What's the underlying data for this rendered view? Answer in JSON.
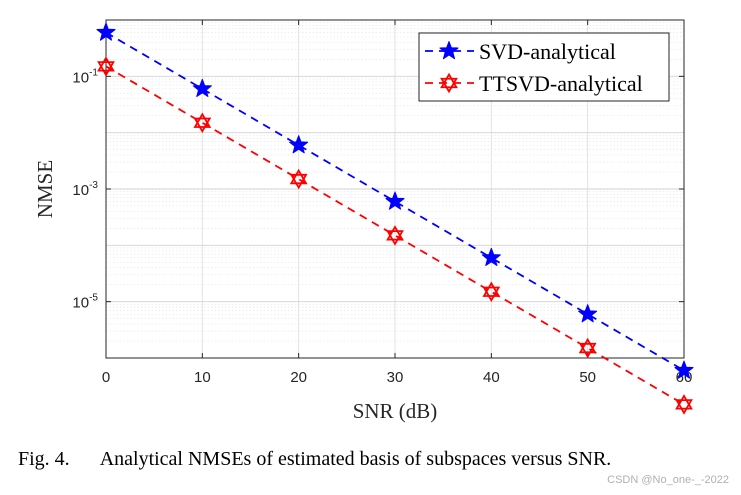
{
  "chart_data": {
    "type": "line",
    "xlabel": "SNR (dB)",
    "ylabel": "NMSE",
    "y_scale": "log",
    "xlim": [
      0,
      60
    ],
    "ylim": [
      1e-06,
      1.0
    ],
    "x_ticks": [
      0,
      10,
      20,
      30,
      40,
      50,
      60
    ],
    "y_ticks": [
      {
        "base": "10",
        "exp": "-1",
        "value": 0.1
      },
      {
        "base": "10",
        "exp": "-3",
        "value": 0.001
      },
      {
        "base": "10",
        "exp": "-5",
        "value": 1e-05
      }
    ],
    "grid": true,
    "legend_position": "top-right",
    "x": [
      0,
      10,
      20,
      30,
      40,
      50,
      60
    ],
    "series": [
      {
        "name": "SVD-analytical",
        "color": "#0000ff",
        "marker": "star",
        "linestyle": "dashed",
        "values": [
          0.6,
          0.06,
          0.006,
          0.0006,
          6e-05,
          6e-06,
          6e-07
        ]
      },
      {
        "name": "TTSVD-analytical",
        "color": "#ff0000",
        "marker": "hexagram",
        "linestyle": "dashed",
        "values": [
          0.15,
          0.015,
          0.0015,
          0.00015,
          1.5e-05,
          1.5e-06,
          1.5e-07
        ]
      }
    ]
  },
  "caption": {
    "figure_number": "Fig. 4.",
    "text": "Analytical NMSEs of estimated basis of subspaces versus SNR."
  },
  "watermark": "CSDN @No_one-_-2022"
}
